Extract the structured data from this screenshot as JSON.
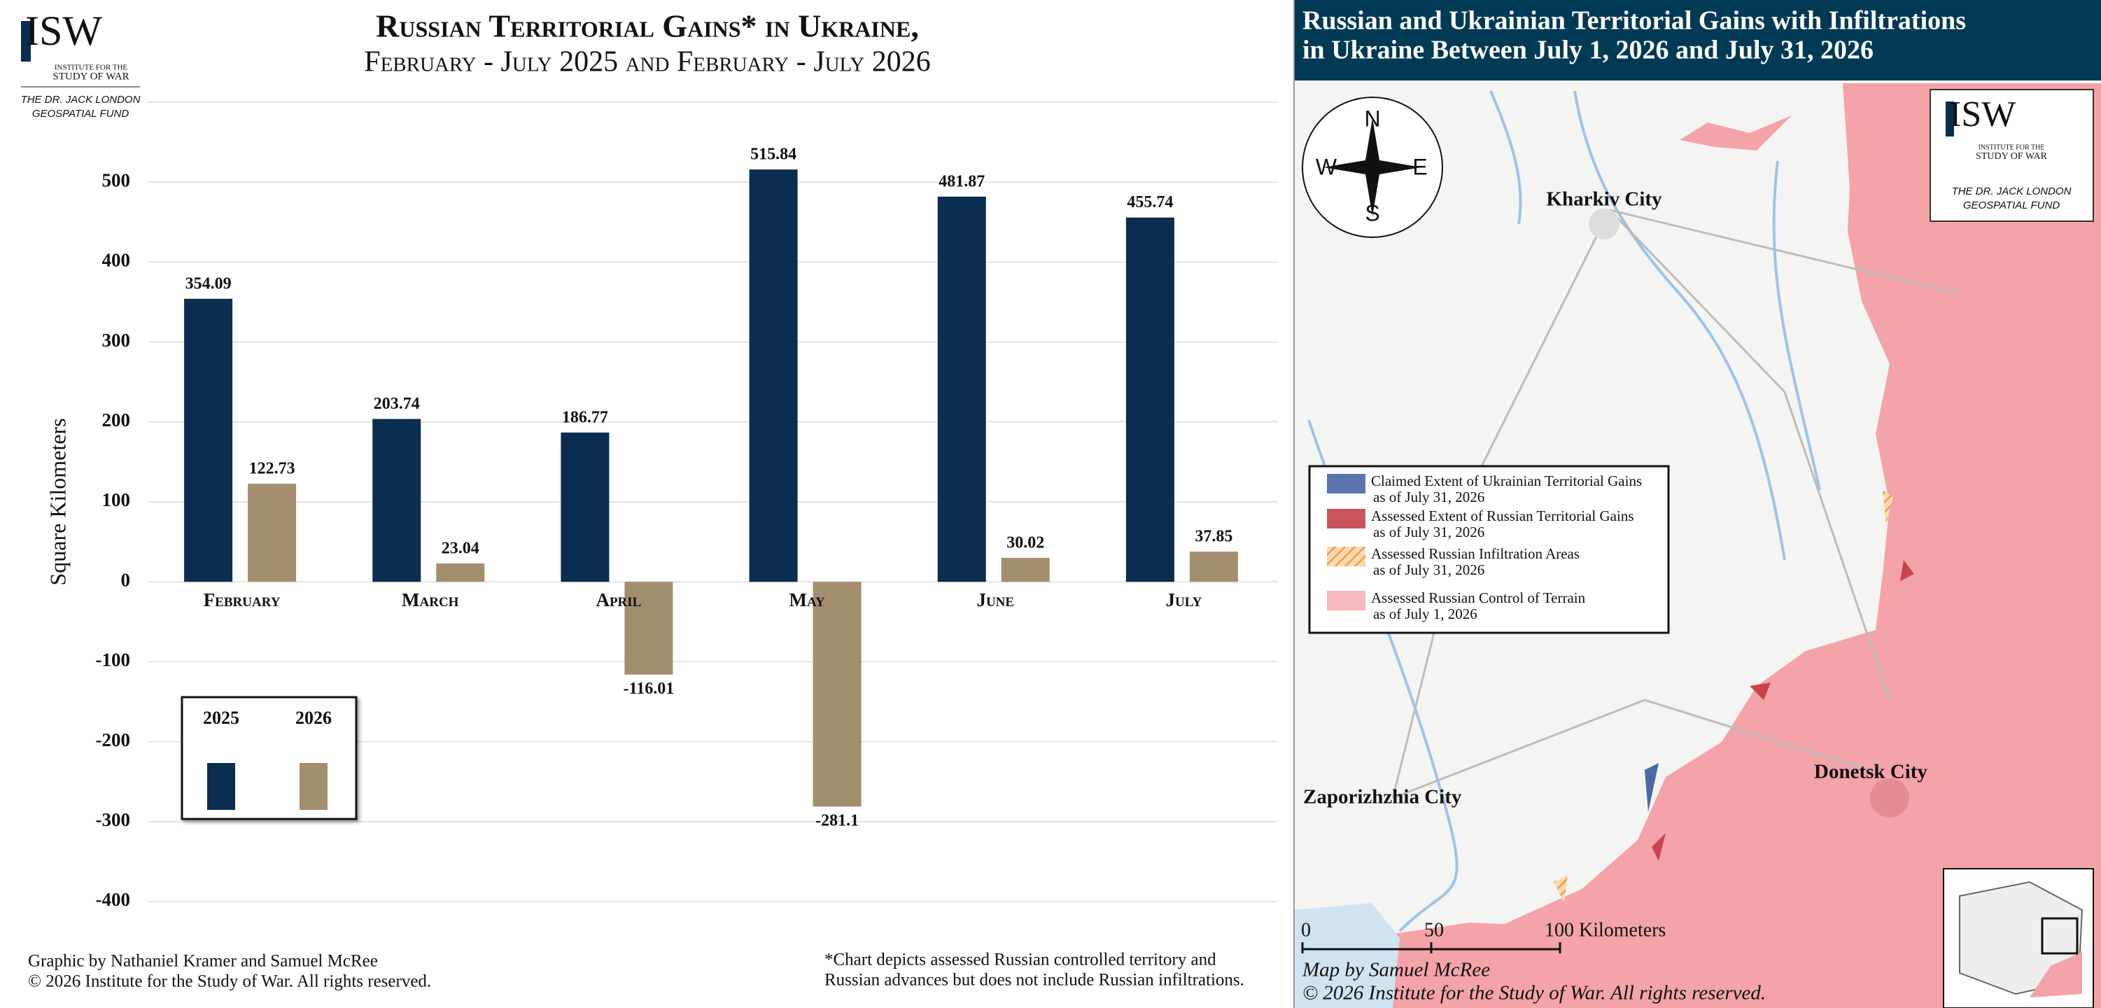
{
  "chart_data": {
    "type": "bar",
    "title": "Russian Territorial Gains* in Ukraine,",
    "subtitle": "February - July 2025 and February - July 2026",
    "y_label": "Square Kilometers",
    "categories": [
      "February",
      "March",
      "April",
      "May",
      "June",
      "July"
    ],
    "series": [
      {
        "name": "2025",
        "color": "#0b2d4f",
        "values": [
          354.09,
          203.74,
          186.77,
          515.84,
          481.87,
          455.74
        ]
      },
      {
        "name": "2026",
        "color": "#a38f6e",
        "values": [
          122.73,
          23.04,
          -116.01,
          -281.1,
          30.02,
          37.85
        ]
      }
    ],
    "ylim": [
      -400,
      600
    ],
    "yticks": [
      -400,
      -300,
      -200,
      -100,
      0,
      100,
      200,
      300,
      400,
      500
    ],
    "grid": true,
    "credit": [
      "Graphic by Nathaniel Kramer and Samuel McRee",
      "© 2026 Institute for the Study of War. All rights reserved."
    ],
    "footnote": [
      "*Chart depicts assessed Russian controlled territory and",
      "Russian advances but does not include Russian infiltrations."
    ]
  },
  "logo": {
    "mark": "ISW",
    "line1": "INSTITUTE FOR THE",
    "line2": "STUDY OF WAR",
    "fund1": "THE DR. JACK LONDON",
    "fund2": "GEOSPATIAL FUND"
  },
  "map": {
    "title": [
      "Russian and Ukrainian Territorial Gains with Infiltrations",
      "in Ukraine Between July 1, 2026 and July 31, 2026"
    ],
    "compass": {
      "n": "N",
      "s": "S",
      "e": "E",
      "w": "W"
    },
    "cities": [
      "Kharkiv City",
      "Donetsk City",
      "Zaporizhzhia City"
    ],
    "legend": [
      {
        "label": "Claimed Extent of Ukrainian Territorial Gains",
        "date": "as of July 31, 2026"
      },
      {
        "label": "Assessed Extent of Russian Territorial Gains",
        "date": "as of July 31, 2026"
      },
      {
        "label": "Assessed Russian Infiltration Areas",
        "date": "as of July 31, 2026"
      },
      {
        "label": "Assessed Russian Control of Terrain",
        "date": "as of July 1, 2026"
      }
    ],
    "scale": [
      "0",
      "50",
      "100 Kilometers"
    ],
    "credit": [
      "Map by Samuel McRee",
      "© 2026 Institute for the Study of War. All rights reserved."
    ]
  }
}
